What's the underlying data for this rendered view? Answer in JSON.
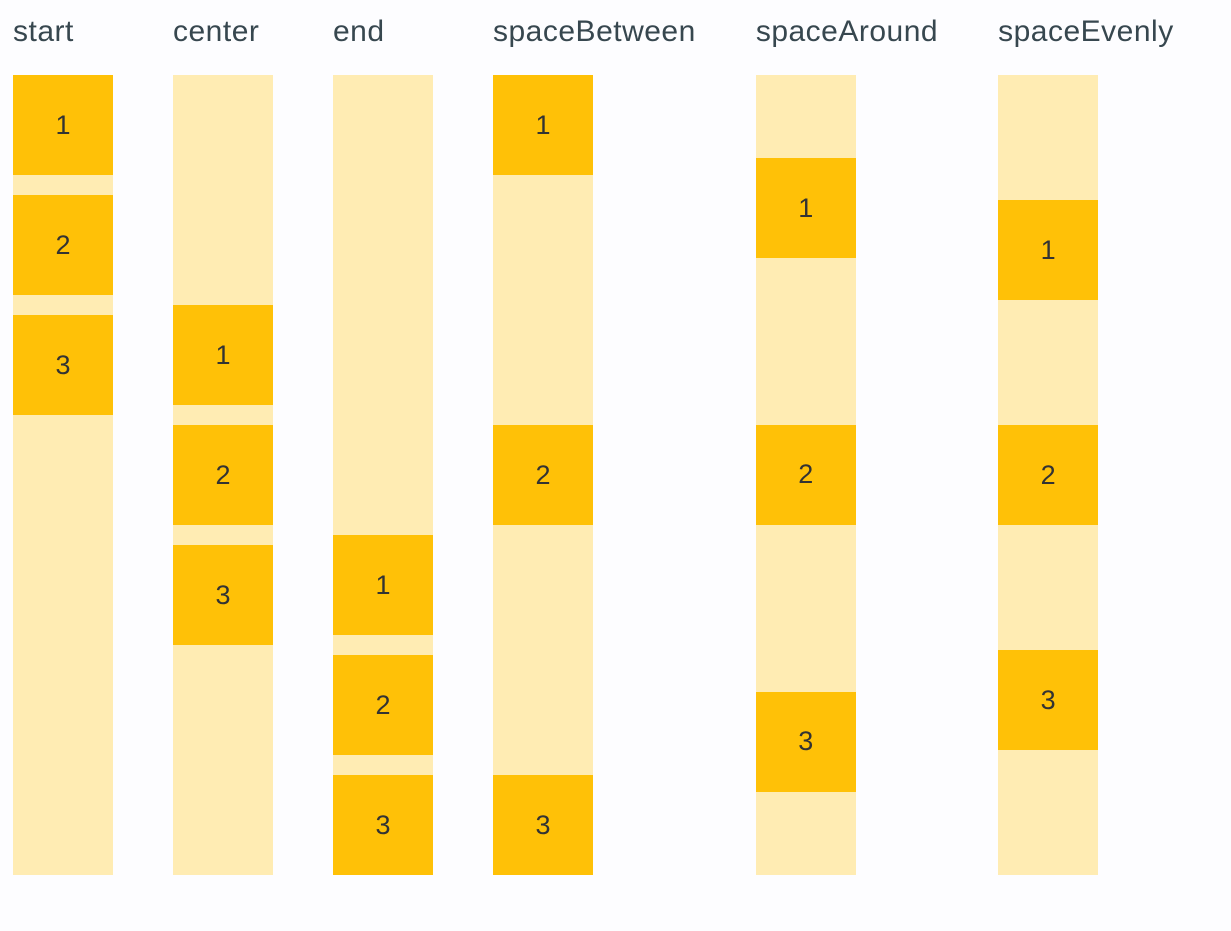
{
  "colors": {
    "page_background": "#fdfdff",
    "box": "#ffc107",
    "track": "#ffecb3",
    "label_text": "#37474f",
    "digit_text": "#333333"
  },
  "demo": {
    "columns": [
      {
        "label": "start",
        "items": [
          "1",
          "2",
          "3"
        ]
      },
      {
        "label": "center",
        "items": [
          "1",
          "2",
          "3"
        ]
      },
      {
        "label": "end",
        "items": [
          "1",
          "2",
          "3"
        ]
      },
      {
        "label": "spaceBetween",
        "items": [
          "1",
          "2",
          "3"
        ]
      },
      {
        "label": "spaceAround",
        "items": [
          "1",
          "2",
          "3"
        ]
      },
      {
        "label": "spaceEvenly",
        "items": [
          "1",
          "2",
          "3"
        ]
      }
    ]
  }
}
